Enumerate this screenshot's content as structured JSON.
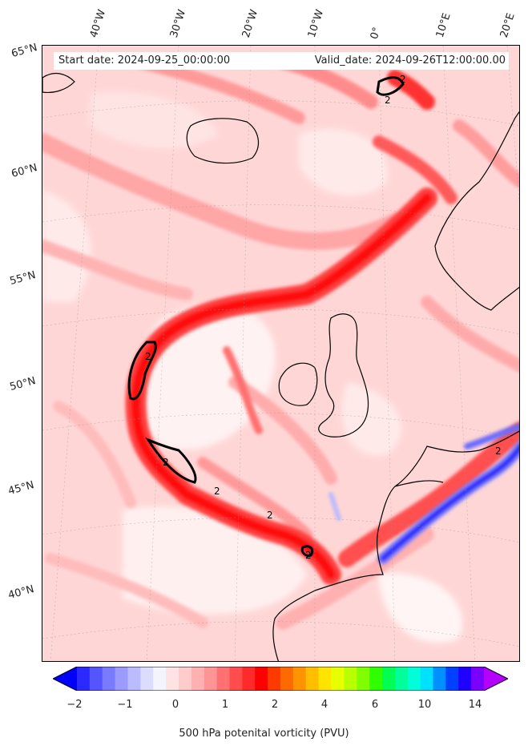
{
  "header": {
    "start_label": "Start date: 2024-09-25_00:00:00",
    "valid_label": "Valid_date: 2024-09-26T12:00:00.00"
  },
  "longitude_labels": [
    "40°W",
    "30°W",
    "20°W",
    "10°W",
    "0°",
    "10°E",
    "20°E"
  ],
  "latitude_labels": [
    "65°N",
    "60°N",
    "55°N",
    "50°N",
    "45°N",
    "40°N"
  ],
  "contour_labels": [
    "2",
    "2",
    "2",
    "2",
    "2",
    "2",
    "2",
    "2"
  ],
  "colorbar": {
    "label": "500 hPa potenital vorticity (PVU)",
    "ticks": [
      "−2",
      "−1",
      "0",
      "1",
      "2",
      "4",
      "6",
      "10",
      "14"
    ],
    "colors": [
      "#0000ff",
      "#2a2aff",
      "#5555ff",
      "#7a7aff",
      "#9a9aff",
      "#bbbbff",
      "#dcdcff",
      "#f4f4ff",
      "#ffe2e2",
      "#ffcccc",
      "#ffb0b0",
      "#ff9494",
      "#ff7070",
      "#ff4c4c",
      "#ff2a2a",
      "#ff0000",
      "#ff3a00",
      "#ff6a00",
      "#ff9400",
      "#ffbf00",
      "#ffe400",
      "#e8ff00",
      "#b8ff00",
      "#80ff00",
      "#30ff00",
      "#00ff50",
      "#00ff9a",
      "#00ffd8",
      "#00e0ff",
      "#0090ff",
      "#0040ff",
      "#2000ff",
      "#7a00ff",
      "#b400ff"
    ]
  },
  "colors": {
    "background_field": "#ffcfcf",
    "high_pv": "#ff2a2a",
    "negative_pv": "#2a2aff",
    "coastline": "#000000"
  }
}
